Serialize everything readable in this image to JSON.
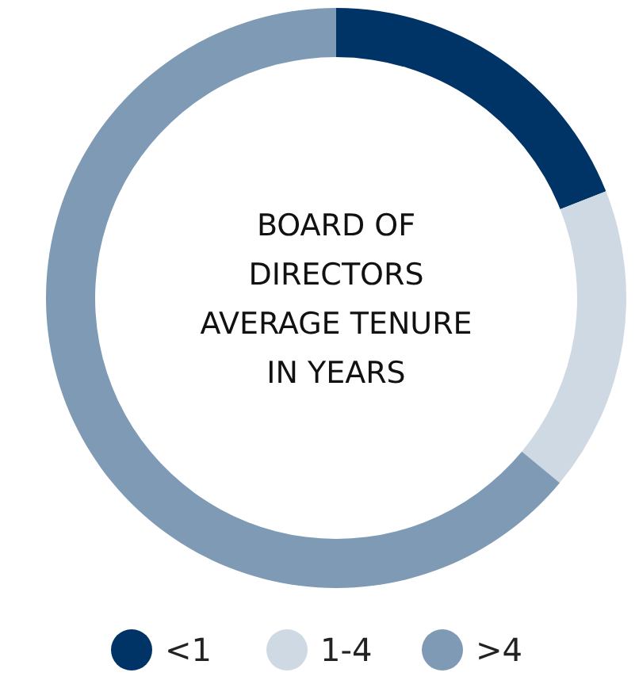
{
  "chart_data": {
    "type": "donut",
    "title": "BOARD OF\nDIRECTORS\nAVERAGE TENURE\nIN YEARS",
    "categories": [
      "<1",
      "1-4",
      ">4"
    ],
    "values": [
      19,
      17,
      64
    ],
    "colors": [
      "#003466",
      "#cfd9e3",
      "#7f9ab5"
    ],
    "legend": "bottom"
  }
}
